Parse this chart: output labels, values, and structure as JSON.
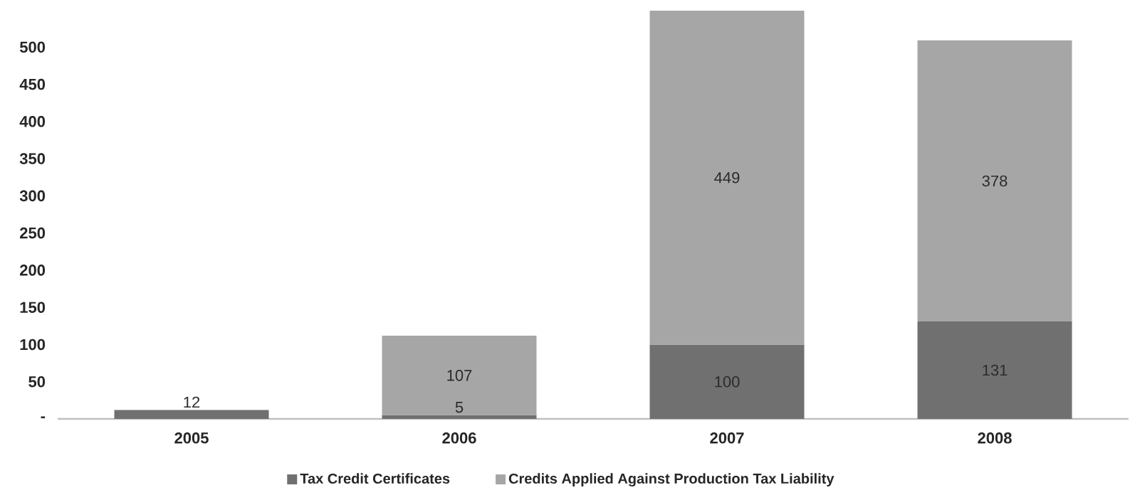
{
  "chart_data": {
    "type": "bar",
    "stacked": true,
    "categories": [
      "2005",
      "2006",
      "2007",
      "2008"
    ],
    "series": [
      {
        "name": "Tax Credit Certificates",
        "color": "#707070",
        "values": [
          12,
          5,
          100,
          131
        ]
      },
      {
        "name": "Credits Applied Against Production Tax Liability",
        "color": "#a6a6a6",
        "values": [
          null,
          107,
          449,
          378
        ]
      }
    ],
    "ylim": [
      0,
      550
    ],
    "yticks": [
      {
        "value": 0,
        "label": "-"
      },
      50,
      100,
      150,
      200,
      250,
      300,
      350,
      400,
      450,
      500
    ],
    "data_labels": true,
    "legend": "bottom"
  }
}
